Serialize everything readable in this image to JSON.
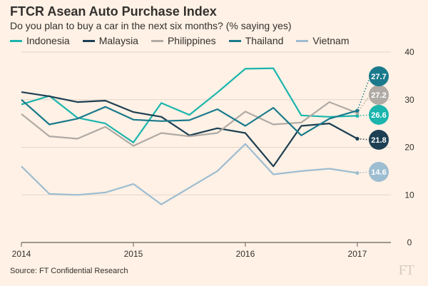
{
  "title": "FTCR Asean Auto Purchase Index",
  "subtitle": "Do you plan to buy a car in the next six months? (% saying yes)",
  "source": "Source: FT Confidential Research",
  "logo": "FT",
  "chart_data": {
    "type": "line",
    "title": "FTCR Asean Auto Purchase Index",
    "subtitle": "Do you plan to buy a car in the next six months? (% saying yes)",
    "xlabel": "",
    "ylabel": "",
    "x_ticks": [
      "2014",
      "2015",
      "2016",
      "2017"
    ],
    "y_ticks": [
      0,
      10,
      20,
      30,
      40
    ],
    "ylim": [
      0,
      40
    ],
    "xlim": [
      2014.0,
      2017.3
    ],
    "grid": true,
    "legend_position": "top",
    "y_axis_side": "right",
    "x": [
      2014.0,
      2014.25,
      2014.5,
      2014.75,
      2015.0,
      2015.25,
      2015.5,
      2015.75,
      2016.0,
      2016.25,
      2016.5,
      2016.75,
      2017.0
    ],
    "series": [
      {
        "name": "Indonesia",
        "color": "#1bb5ad",
        "values": [
          29.0,
          30.8,
          26.2,
          25.0,
          21.0,
          29.3,
          26.8,
          31.5,
          36.5,
          36.6,
          26.7,
          26.4,
          26.6
        ],
        "end_label": "26.6"
      },
      {
        "name": "Malaysia",
        "color": "#1d3f53",
        "values": [
          31.6,
          30.7,
          29.5,
          29.8,
          27.4,
          26.4,
          22.5,
          24.0,
          23.0,
          16.0,
          24.5,
          25.0,
          21.8
        ],
        "end_label": "21.8"
      },
      {
        "name": "Philippines",
        "color": "#b0aaa5",
        "values": [
          27.0,
          22.3,
          21.8,
          24.3,
          20.3,
          23.0,
          22.3,
          23.0,
          27.5,
          24.8,
          25.2,
          29.5,
          27.2
        ],
        "end_label": "27.2"
      },
      {
        "name": "Thailand",
        "color": "#1a7a8c",
        "values": [
          30.0,
          24.8,
          26.0,
          28.5,
          25.8,
          25.5,
          25.7,
          28.0,
          24.5,
          28.3,
          22.5,
          26.0,
          27.7
        ],
        "end_label": "27.7"
      },
      {
        "name": "Vietnam",
        "color": "#9dbdd1",
        "values": [
          16.0,
          10.2,
          10.0,
          10.5,
          12.3,
          8.0,
          11.5,
          15.0,
          20.7,
          14.3,
          15.0,
          15.5,
          14.6
        ],
        "end_label": "14.6"
      }
    ]
  }
}
